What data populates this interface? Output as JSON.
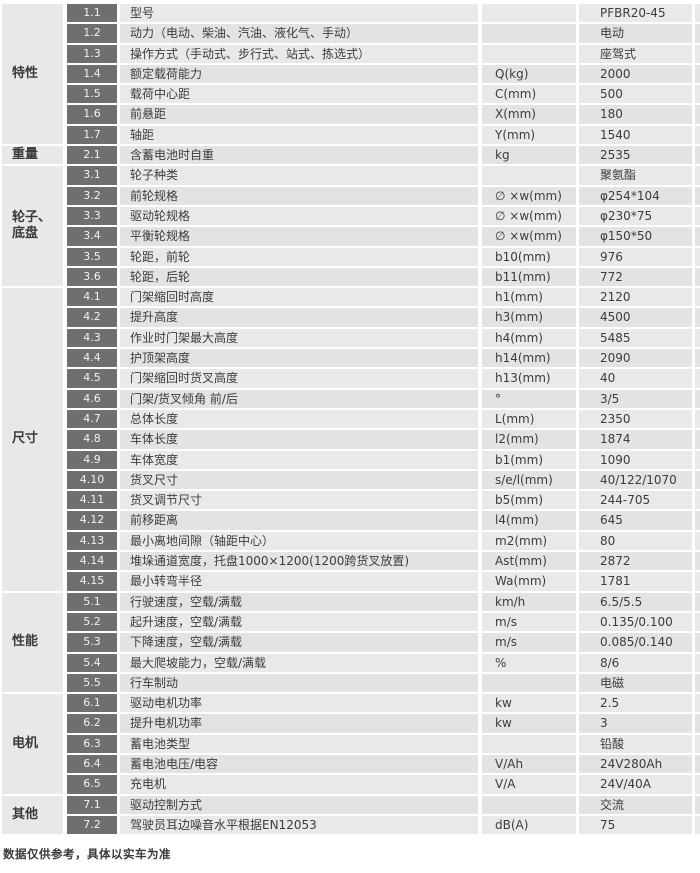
{
  "colors": {
    "row_bg": "#e9e9e9",
    "row_bg_alt": "#e3e3e3",
    "category_bg": "#e8e8e8",
    "code_bg": "#6f6f6f",
    "code_text": "#f2f2f2",
    "body_text": "#3c3c3c"
  },
  "table": {
    "groups": [
      {
        "category": "特性",
        "rows": [
          {
            "code": "1.1",
            "desc": "型号",
            "unit": "",
            "value": "PFBR20-45"
          },
          {
            "code": "1.2",
            "desc": "动力（电动、柴油、汽油、液化气、手动）",
            "unit": "",
            "value": "电动"
          },
          {
            "code": "1.3",
            "desc": "操作方式（手动式、步行式、站式、拣选式）",
            "unit": "",
            "value": "座驾式"
          },
          {
            "code": "1.4",
            "desc": "额定载荷能力",
            "unit": "Q(kg)",
            "value": "2000"
          },
          {
            "code": "1.5",
            "desc": "载荷中心距",
            "unit": "C(mm)",
            "value": "500"
          },
          {
            "code": "1.6",
            "desc": "前悬距",
            "unit": "X(mm)",
            "value": "180"
          },
          {
            "code": "1.7",
            "desc": "轴距",
            "unit": "Y(mm)",
            "value": "1540"
          }
        ]
      },
      {
        "category": "重量",
        "rows": [
          {
            "code": "2.1",
            "desc": "含蓄电池时自重",
            "unit": "kg",
            "value": "2535"
          }
        ]
      },
      {
        "category": "轮子、底盘",
        "rows": [
          {
            "code": "3.1",
            "desc": "轮子种类",
            "unit": "",
            "value": "聚氨酯"
          },
          {
            "code": "3.2",
            "desc": "前轮规格",
            "unit": "∅ ×w(mm)",
            "value": "φ254*104"
          },
          {
            "code": "3.3",
            "desc": "驱动轮规格",
            "unit": "∅ ×w(mm)",
            "value": "φ230*75"
          },
          {
            "code": "3.4",
            "desc": "平衡轮规格",
            "unit": "∅ ×w(mm)",
            "value": "φ150*50"
          },
          {
            "code": "3.5",
            "desc": "轮距，前轮",
            "unit": "b10(mm)",
            "value": "976"
          },
          {
            "code": "3.6",
            "desc": "轮距，后轮",
            "unit": "b11(mm)",
            "value": "772"
          }
        ]
      },
      {
        "category": "尺寸",
        "rows": [
          {
            "code": "4.1",
            "desc": "门架缩回时高度",
            "unit": "h1(mm)",
            "value": "2120"
          },
          {
            "code": "4.2",
            "desc": "提升高度",
            "unit": "h3(mm)",
            "value": "4500"
          },
          {
            "code": "4.3",
            "desc": "作业时门架最大高度",
            "unit": "h4(mm)",
            "value": "5485"
          },
          {
            "code": "4.4",
            "desc": "护顶架高度",
            "unit": "h14(mm)",
            "value": "2090"
          },
          {
            "code": "4.5",
            "desc": "门架缩回时货叉高度",
            "unit": "h13(mm)",
            "value": "40"
          },
          {
            "code": "4.6",
            "desc": "门架/货叉倾角 前/后",
            "unit": "°",
            "value": "3/5"
          },
          {
            "code": "4.7",
            "desc": "总体长度",
            "unit": "L(mm)",
            "value": "2350"
          },
          {
            "code": "4.8",
            "desc": "车体长度",
            "unit": "l2(mm)",
            "value": "1874"
          },
          {
            "code": "4.9",
            "desc": "车体宽度",
            "unit": "b1(mm)",
            "value": "1090"
          },
          {
            "code": "4.10",
            "desc": "货叉尺寸",
            "unit": "s/e/l(mm)",
            "value": "40/122/1070"
          },
          {
            "code": "4.11",
            "desc": "货叉调节尺寸",
            "unit": "b5(mm)",
            "value": "244-705"
          },
          {
            "code": "4.12",
            "desc": "前移距离",
            "unit": "l4(mm)",
            "value": "645"
          },
          {
            "code": "4.13",
            "desc": "最小离地间隙（轴距中心）",
            "unit": "m2(mm)",
            "value": "80"
          },
          {
            "code": "4.14",
            "desc": "堆垛通道宽度，托盘1000×1200(1200跨货叉放置)",
            "unit": "Ast(mm)",
            "value": "2872"
          },
          {
            "code": "4.15",
            "desc": "最小转弯半径",
            "unit": "Wa(mm)",
            "value": "1781"
          }
        ]
      },
      {
        "category": "性能",
        "rows": [
          {
            "code": "5.1",
            "desc": "行驶速度，空载/满载",
            "unit": "km/h",
            "value": "6.5/5.5"
          },
          {
            "code": "5.2",
            "desc": "起升速度，空载/满载",
            "unit": "m/s",
            "value": "0.135/0.100"
          },
          {
            "code": "5.3",
            "desc": "下降速度，空载/满载",
            "unit": "m/s",
            "value": "0.085/0.140"
          },
          {
            "code": "5.4",
            "desc": "最大爬坡能力，空载/满载",
            "unit": "%",
            "value": "8/6"
          },
          {
            "code": "5.5",
            "desc": "行车制动",
            "unit": "",
            "value": "电磁"
          }
        ]
      },
      {
        "category": "电机",
        "rows": [
          {
            "code": "6.1",
            "desc": "驱动电机功率",
            "unit": "kw",
            "value": "2.5"
          },
          {
            "code": "6.2",
            "desc": "提升电机功率",
            "unit": "kw",
            "value": "3"
          },
          {
            "code": "6.3",
            "desc": "蓄电池类型",
            "unit": "",
            "value": "铅酸"
          },
          {
            "code": "6.4",
            "desc": "蓄电池电压/电容",
            "unit": "V/Ah",
            "value": "24V280Ah"
          },
          {
            "code": "6.5",
            "desc": "充电机",
            "unit": "V/A",
            "value": "24V/40A"
          }
        ]
      },
      {
        "category": "其他",
        "rows": [
          {
            "code": "7.1",
            "desc": "驱动控制方式",
            "unit": "",
            "value": "交流"
          },
          {
            "code": "7.2",
            "desc": "驾驶员耳边噪音水平根据EN12053",
            "unit": "dB(A)",
            "value": "75"
          }
        ]
      }
    ]
  },
  "footer": {
    "note": "数据仅供参考，具体以实车为准"
  }
}
